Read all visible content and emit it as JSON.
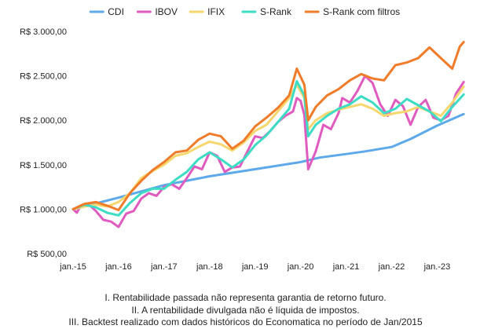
{
  "chart_data": {
    "type": "line",
    "title": "",
    "xlabel": "",
    "ylabel": "",
    "ylim": [
      500,
      3000
    ],
    "xlim": [
      "2015-01",
      "2023-09"
    ],
    "x_ticks": [
      "jan.-15",
      "jan.-16",
      "jan.-17",
      "jan.-18",
      "jan.-19",
      "jan.-20",
      "jan.-21",
      "jan.-22",
      "jan.-23"
    ],
    "y_ticks": [
      500,
      1000,
      1500,
      2000,
      2500,
      3000
    ],
    "y_tick_labels": [
      "R$ 500,00",
      "R$ 1.000,00",
      "R$ 1.500,00",
      "R$ 2.000,00",
      "R$ 2.500,00",
      "R$ 3.000,00"
    ],
    "grid": false,
    "legend_position": "top",
    "series": [
      {
        "name": "CDI",
        "color": "#5DA9E9",
        "points": [
          [
            "2015-01",
            1000
          ],
          [
            "2016-01",
            1130
          ],
          [
            "2017-01",
            1270
          ],
          [
            "2018-01",
            1370
          ],
          [
            "2019-01",
            1450
          ],
          [
            "2020-01",
            1530
          ],
          [
            "2020-06",
            1580
          ],
          [
            "2021-01",
            1620
          ],
          [
            "2021-06",
            1650
          ],
          [
            "2022-01",
            1700
          ],
          [
            "2022-06",
            1790
          ],
          [
            "2023-01",
            1940
          ],
          [
            "2023-08",
            2070
          ]
        ]
      },
      {
        "name": "IBOV",
        "color": "#E05BBF",
        "points": [
          [
            "2015-01",
            1000
          ],
          [
            "2015-02",
            960
          ],
          [
            "2015-03",
            1040
          ],
          [
            "2015-05",
            1060
          ],
          [
            "2015-07",
            980
          ],
          [
            "2015-09",
            880
          ],
          [
            "2015-11",
            860
          ],
          [
            "2016-01",
            800
          ],
          [
            "2016-03",
            950
          ],
          [
            "2016-05",
            980
          ],
          [
            "2016-07",
            1120
          ],
          [
            "2016-09",
            1180
          ],
          [
            "2016-11",
            1150
          ],
          [
            "2017-01",
            1250
          ],
          [
            "2017-03",
            1280
          ],
          [
            "2017-05",
            1230
          ],
          [
            "2017-07",
            1350
          ],
          [
            "2017-09",
            1480
          ],
          [
            "2017-11",
            1450
          ],
          [
            "2018-01",
            1640
          ],
          [
            "2018-03",
            1600
          ],
          [
            "2018-05",
            1420
          ],
          [
            "2018-07",
            1470
          ],
          [
            "2018-09",
            1480
          ],
          [
            "2018-11",
            1650
          ],
          [
            "2019-01",
            1820
          ],
          [
            "2019-03",
            1800
          ],
          [
            "2019-05",
            1880
          ],
          [
            "2019-07",
            1980
          ],
          [
            "2019-09",
            2050
          ],
          [
            "2019-11",
            2100
          ],
          [
            "2019-12",
            2250
          ],
          [
            "2020-01",
            2220
          ],
          [
            "2020-02",
            2060
          ],
          [
            "2020-03",
            1450
          ],
          [
            "2020-05",
            1650
          ],
          [
            "2020-07",
            1950
          ],
          [
            "2020-09",
            1900
          ],
          [
            "2020-11",
            2080
          ],
          [
            "2020-12",
            2250
          ],
          [
            "2021-02",
            2200
          ],
          [
            "2021-04",
            2330
          ],
          [
            "2021-06",
            2500
          ],
          [
            "2021-08",
            2420
          ],
          [
            "2021-10",
            2180
          ],
          [
            "2021-12",
            2050
          ],
          [
            "2022-02",
            2230
          ],
          [
            "2022-04",
            2160
          ],
          [
            "2022-06",
            1950
          ],
          [
            "2022-08",
            2150
          ],
          [
            "2022-10",
            2230
          ],
          [
            "2022-12",
            2030
          ],
          [
            "2023-02",
            2000
          ],
          [
            "2023-04",
            2050
          ],
          [
            "2023-06",
            2300
          ],
          [
            "2023-08",
            2430
          ]
        ]
      },
      {
        "name": "IFIX",
        "color": "#F5D76E",
        "points": [
          [
            "2015-01",
            1000
          ],
          [
            "2015-04",
            1030
          ],
          [
            "2015-07",
            1050
          ],
          [
            "2015-10",
            1030
          ],
          [
            "2016-01",
            1080
          ],
          [
            "2016-04",
            1180
          ],
          [
            "2016-07",
            1350
          ],
          [
            "2016-10",
            1430
          ],
          [
            "2017-01",
            1500
          ],
          [
            "2017-04",
            1600
          ],
          [
            "2017-07",
            1630
          ],
          [
            "2017-10",
            1700
          ],
          [
            "2018-01",
            1760
          ],
          [
            "2018-04",
            1730
          ],
          [
            "2018-07",
            1660
          ],
          [
            "2018-10",
            1750
          ],
          [
            "2019-01",
            1880
          ],
          [
            "2019-04",
            1950
          ],
          [
            "2019-07",
            2100
          ],
          [
            "2019-10",
            2250
          ],
          [
            "2019-12",
            2400
          ],
          [
            "2020-02",
            2250
          ],
          [
            "2020-03",
            1900
          ],
          [
            "2020-05",
            2000
          ],
          [
            "2020-08",
            2080
          ],
          [
            "2020-11",
            2120
          ],
          [
            "2021-02",
            2150
          ],
          [
            "2021-05",
            2180
          ],
          [
            "2021-08",
            2130
          ],
          [
            "2021-11",
            2050
          ],
          [
            "2022-02",
            2080
          ],
          [
            "2022-05",
            2100
          ],
          [
            "2022-08",
            2150
          ],
          [
            "2022-11",
            2100
          ],
          [
            "2023-02",
            2050
          ],
          [
            "2023-05",
            2200
          ],
          [
            "2023-08",
            2380
          ]
        ]
      },
      {
        "name": "S-Rank",
        "color": "#3DDCC4",
        "points": [
          [
            "2015-01",
            1000
          ],
          [
            "2015-04",
            1050
          ],
          [
            "2015-07",
            1020
          ],
          [
            "2015-10",
            960
          ],
          [
            "2016-01",
            930
          ],
          [
            "2016-04",
            1070
          ],
          [
            "2016-07",
            1180
          ],
          [
            "2016-10",
            1230
          ],
          [
            "2017-01",
            1230
          ],
          [
            "2017-04",
            1330
          ],
          [
            "2017-07",
            1420
          ],
          [
            "2017-10",
            1560
          ],
          [
            "2018-01",
            1640
          ],
          [
            "2018-04",
            1560
          ],
          [
            "2018-07",
            1470
          ],
          [
            "2018-10",
            1560
          ],
          [
            "2019-01",
            1720
          ],
          [
            "2019-04",
            1830
          ],
          [
            "2019-07",
            1980
          ],
          [
            "2019-10",
            2130
          ],
          [
            "2019-12",
            2440
          ],
          [
            "2020-02",
            2280
          ],
          [
            "2020-03",
            1820
          ],
          [
            "2020-05",
            1950
          ],
          [
            "2020-08",
            2050
          ],
          [
            "2020-11",
            2130
          ],
          [
            "2021-02",
            2180
          ],
          [
            "2021-05",
            2270
          ],
          [
            "2021-08",
            2200
          ],
          [
            "2021-11",
            2080
          ],
          [
            "2022-02",
            2130
          ],
          [
            "2022-05",
            2240
          ],
          [
            "2022-08",
            2170
          ],
          [
            "2022-11",
            2100
          ],
          [
            "2023-02",
            1990
          ],
          [
            "2023-05",
            2150
          ],
          [
            "2023-08",
            2290
          ]
        ]
      },
      {
        "name": "S-Rank com filtros",
        "color": "#F07C2A",
        "points": [
          [
            "2015-01",
            1000
          ],
          [
            "2015-04",
            1060
          ],
          [
            "2015-07",
            1080
          ],
          [
            "2015-10",
            1040
          ],
          [
            "2016-01",
            990
          ],
          [
            "2016-04",
            1180
          ],
          [
            "2016-07",
            1320
          ],
          [
            "2016-10",
            1440
          ],
          [
            "2017-01",
            1530
          ],
          [
            "2017-04",
            1640
          ],
          [
            "2017-07",
            1660
          ],
          [
            "2017-10",
            1780
          ],
          [
            "2018-01",
            1850
          ],
          [
            "2018-04",
            1820
          ],
          [
            "2018-07",
            1680
          ],
          [
            "2018-10",
            1770
          ],
          [
            "2019-01",
            1930
          ],
          [
            "2019-04",
            2030
          ],
          [
            "2019-07",
            2140
          ],
          [
            "2019-10",
            2280
          ],
          [
            "2019-12",
            2580
          ],
          [
            "2020-02",
            2400
          ],
          [
            "2020-03",
            2000
          ],
          [
            "2020-05",
            2150
          ],
          [
            "2020-08",
            2280
          ],
          [
            "2020-11",
            2350
          ],
          [
            "2021-02",
            2450
          ],
          [
            "2021-05",
            2520
          ],
          [
            "2021-08",
            2470
          ],
          [
            "2021-11",
            2450
          ],
          [
            "2022-02",
            2620
          ],
          [
            "2022-05",
            2650
          ],
          [
            "2022-08",
            2700
          ],
          [
            "2022-11",
            2820
          ],
          [
            "2023-02",
            2700
          ],
          [
            "2023-05",
            2580
          ],
          [
            "2023-07",
            2830
          ],
          [
            "2023-08",
            2880
          ]
        ]
      }
    ]
  },
  "notes": [
    "I. Rentabilidade passada não representa garantia de retorno futuro.",
    "II. A rentabilidade divulgada não é líquida de impostos.",
    "III. Backtest realizado com dados históricos do Economatica no período de Jan/2015"
  ]
}
